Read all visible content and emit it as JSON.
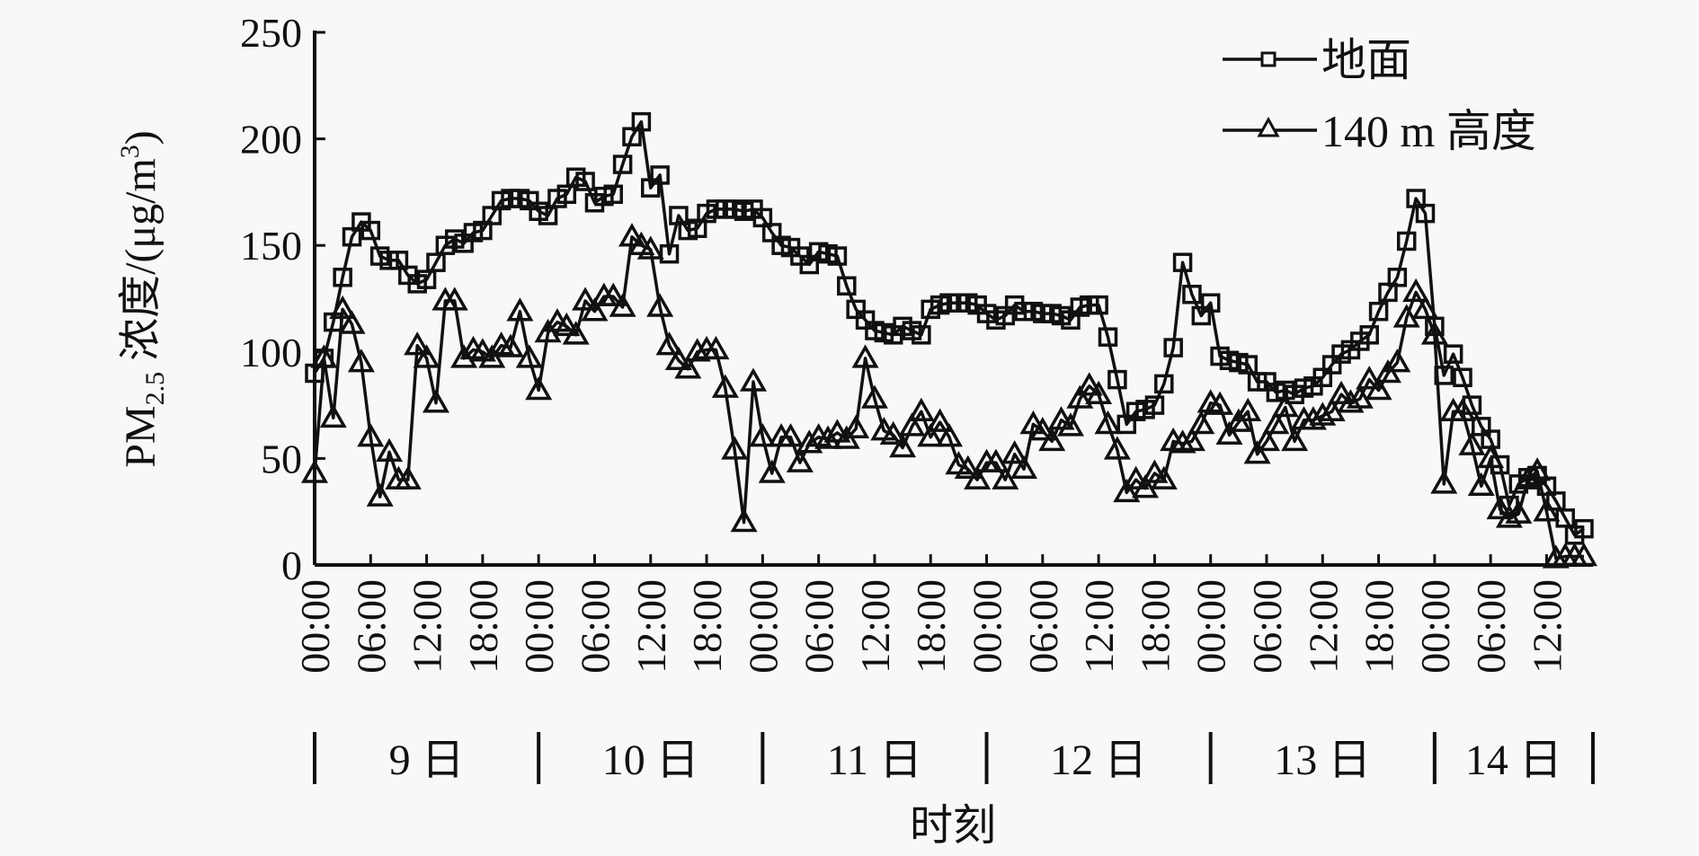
{
  "chart_data": {
    "type": "line",
    "xlabel": "时刻",
    "ylabel": {
      "main": "PM",
      "sub": "2.5",
      "mid": " 浓度/(μg/m",
      "sup": "3",
      "end": ")"
    },
    "ylim": [
      0,
      250
    ],
    "yticks": [
      0,
      50,
      100,
      150,
      200,
      250
    ],
    "grid": false,
    "legend_position": "top-right",
    "x_unit": "hours since 9日 00:00 (hourly samples)",
    "xtick_hours": [
      0,
      6,
      12,
      18,
      24,
      30,
      36,
      42,
      48,
      54,
      60,
      66,
      72,
      78,
      84,
      90,
      96,
      102,
      108,
      114,
      120,
      126,
      132
    ],
    "xtick_labels": [
      "00:00",
      "06:00",
      "12:00",
      "18:00",
      "00:00",
      "06:00",
      "12:00",
      "18:00",
      "00:00",
      "06:00",
      "12:00",
      "18:00",
      "00:00",
      "06:00",
      "12:00",
      "18:00",
      "00:00",
      "06:00",
      "12:00",
      "18:00",
      "00:00",
      "06:00",
      "12:00"
    ],
    "days": [
      {
        "label": "9 日",
        "start_hour": 0
      },
      {
        "label": "10 日",
        "start_hour": 24
      },
      {
        "label": "11 日",
        "start_hour": 48
      },
      {
        "label": "12 日",
        "start_hour": 72
      },
      {
        "label": "13 日",
        "start_hour": 96
      },
      {
        "label": "14 日",
        "start_hour": 120
      }
    ],
    "series": [
      {
        "name": "地面",
        "marker": "square",
        "values": [
          90,
          97,
          114,
          135,
          154,
          161,
          157,
          145,
          143,
          143,
          136,
          132,
          134,
          142,
          150,
          153,
          151,
          156,
          157,
          164,
          171,
          172,
          172,
          171,
          166,
          164,
          172,
          174,
          182,
          180,
          170,
          173,
          174,
          188,
          201,
          208,
          177,
          183,
          146,
          164,
          157,
          158,
          165,
          167,
          167,
          167,
          166,
          167,
          163,
          156,
          150,
          149,
          145,
          141,
          147,
          146,
          145,
          131,
          120,
          115,
          110,
          109,
          108,
          112,
          110,
          108,
          120,
          122,
          123,
          123,
          123,
          122,
          118,
          115,
          117,
          122,
          119,
          119,
          118,
          118,
          117,
          115,
          121,
          122,
          122,
          107,
          87,
          66,
          72,
          73,
          75,
          85,
          102,
          142,
          127,
          117,
          123,
          98,
          96,
          95,
          94,
          86,
          86,
          81,
          82,
          80,
          83,
          84,
          88,
          94,
          99,
          101,
          105,
          108,
          119,
          128,
          135,
          152,
          172,
          165,
          112,
          89,
          99,
          88,
          75,
          65,
          59,
          47,
          28,
          38,
          41,
          42,
          37,
          30,
          22,
          14,
          17
        ]
      },
      {
        "name": "140 m 高度",
        "marker": "triangle",
        "values": [
          43,
          97,
          69,
          120,
          113,
          95,
          60,
          32,
          53,
          40,
          40,
          103,
          97,
          76,
          124,
          124,
          97,
          101,
          100,
          97,
          103,
          102,
          119,
          97,
          82,
          109,
          114,
          112,
          108,
          124,
          119,
          126,
          126,
          121,
          154,
          150,
          148,
          121,
          103,
          96,
          92,
          100,
          101,
          101,
          83,
          54,
          20,
          86,
          60,
          43,
          60,
          60,
          48,
          57,
          60,
          59,
          62,
          59,
          64,
          97,
          78,
          63,
          61,
          55,
          65,
          72,
          60,
          67,
          60,
          47,
          45,
          40,
          48,
          48,
          40,
          52,
          45,
          66,
          63,
          58,
          68,
          65,
          78,
          84,
          80,
          66,
          54,
          34,
          40,
          36,
          43,
          40,
          58,
          57,
          58,
          66,
          76,
          75,
          61,
          67,
          72,
          52,
          58,
          66,
          74,
          58,
          68,
          68,
          70,
          72,
          80,
          76,
          78,
          87,
          82,
          90,
          95,
          116,
          128,
          120,
          108,
          38,
          72,
          72,
          56,
          37,
          50,
          26,
          22,
          24,
          40,
          44,
          25,
          3,
          4,
          4,
          4
        ]
      }
    ],
    "colors": {
      "line": "#111111",
      "background": "#f8f8f8"
    }
  }
}
